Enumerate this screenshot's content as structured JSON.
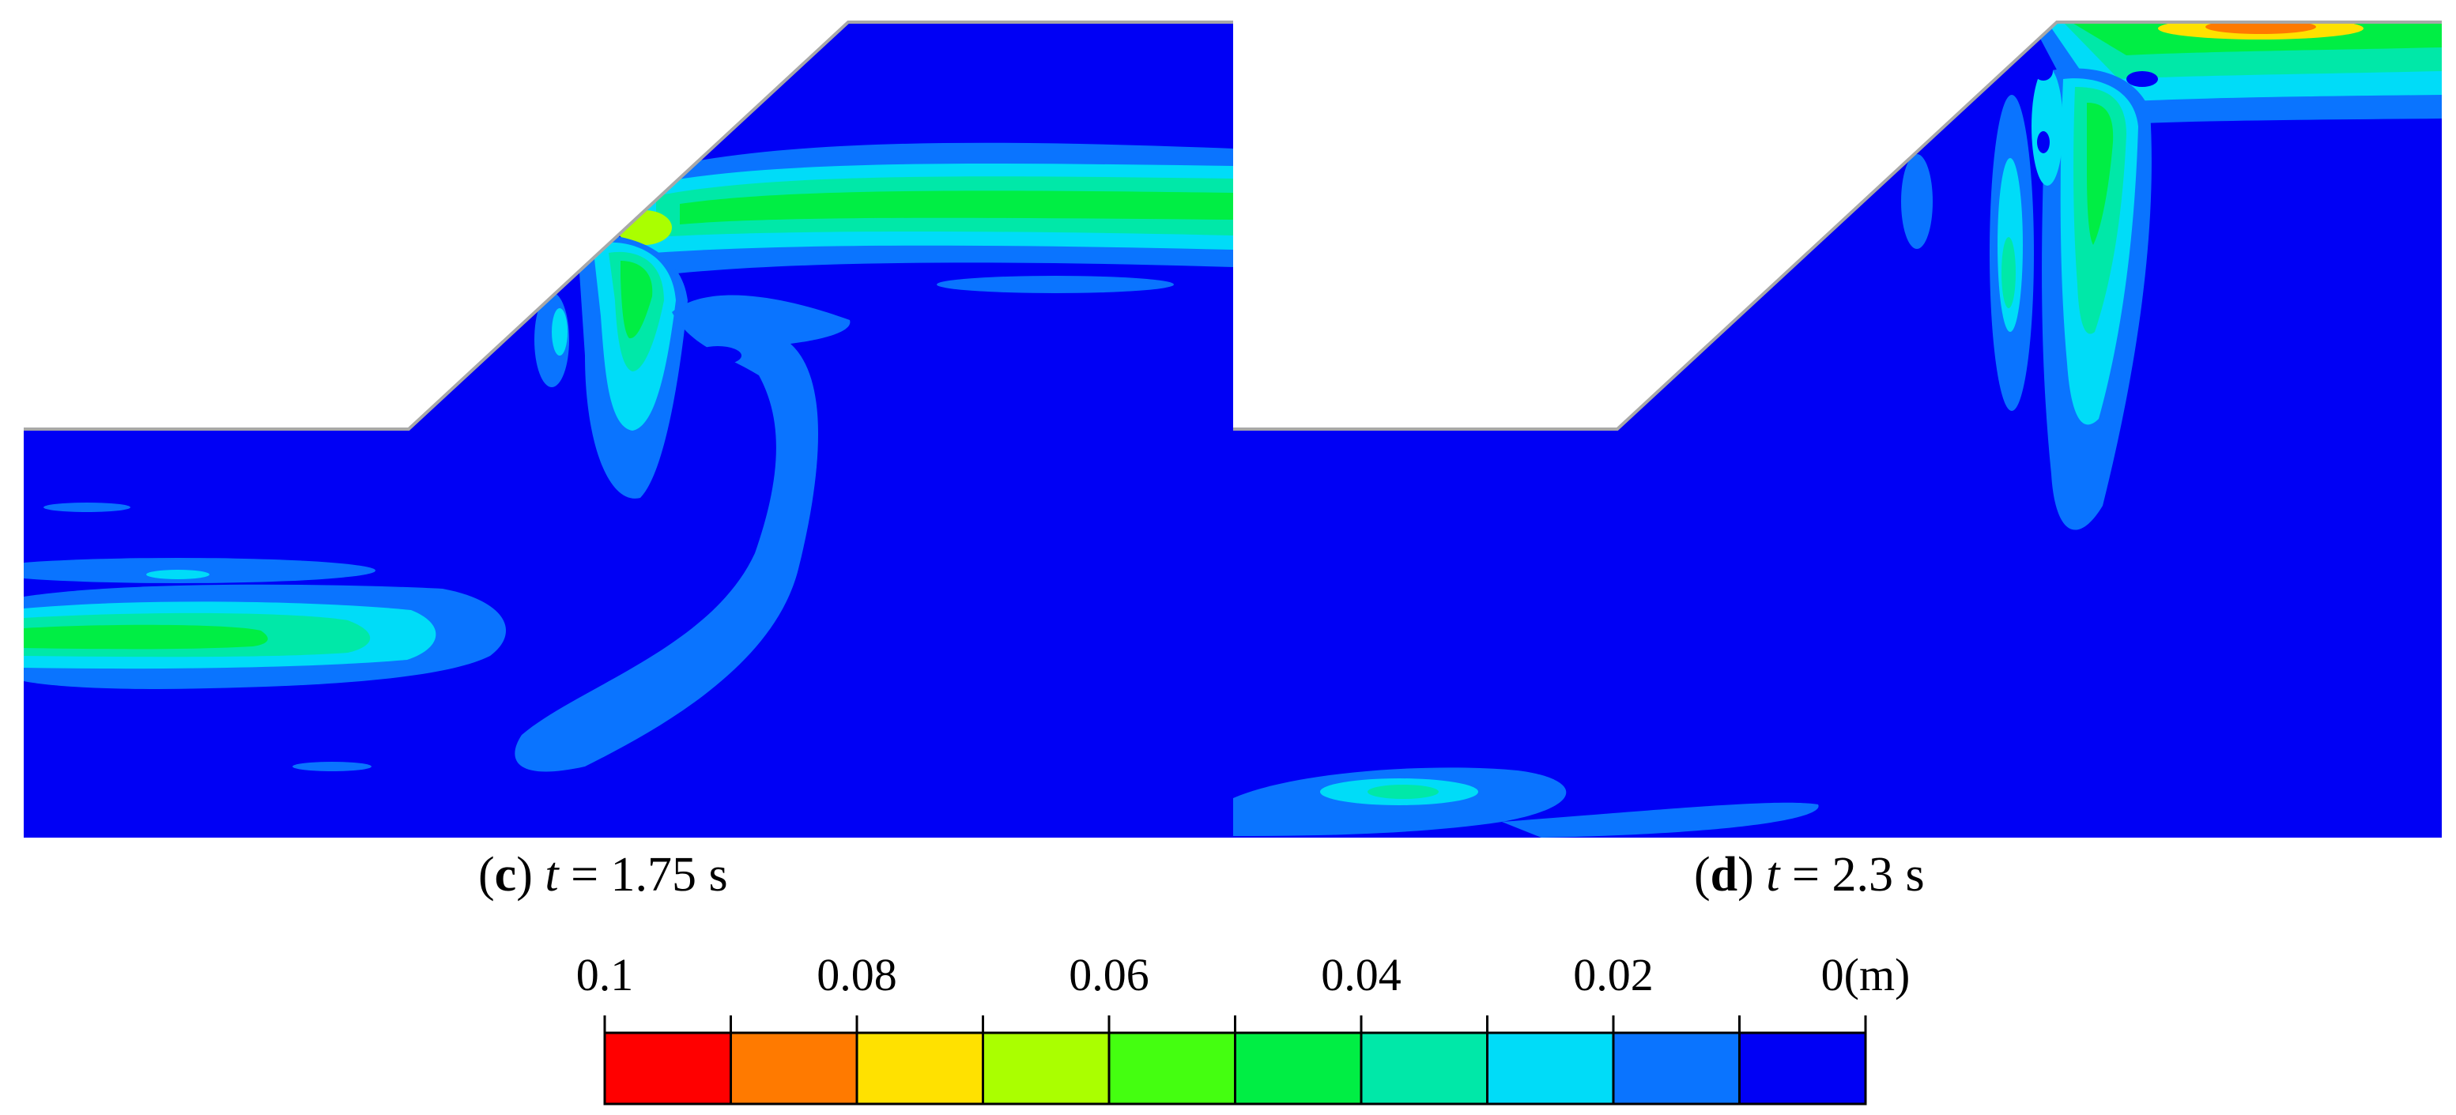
{
  "panels": [
    {
      "id": "c",
      "panel_label": "c",
      "time_variable": "t",
      "time_value": "1.75 s"
    },
    {
      "id": "d",
      "panel_label": "d",
      "time_variable": "t",
      "time_value": "2.3 s"
    }
  ],
  "colorbar": {
    "tick_labels": [
      "0.1",
      "0.08",
      "0.06",
      "0.04",
      "0.02",
      "0(m)"
    ],
    "tick_values": [
      0.1,
      0.08,
      0.06,
      0.04,
      0.02,
      0
    ],
    "colors": [
      "#ff0000",
      "#ff7a00",
      "#ffe100",
      "#aaff00",
      "#44ff10",
      "#00ee44",
      "#00e8a8",
      "#00dcf8",
      "#0a74ff",
      "#0000f5"
    ]
  },
  "contour_colors": {
    "background": "#0000f5",
    "level_1": "#0a74ff",
    "level_2": "#00dcf8",
    "level_3": "#00e8a8",
    "level_4": "#00ee44",
    "level_5": "#aaff00",
    "level_6": "#ff7a00"
  }
}
